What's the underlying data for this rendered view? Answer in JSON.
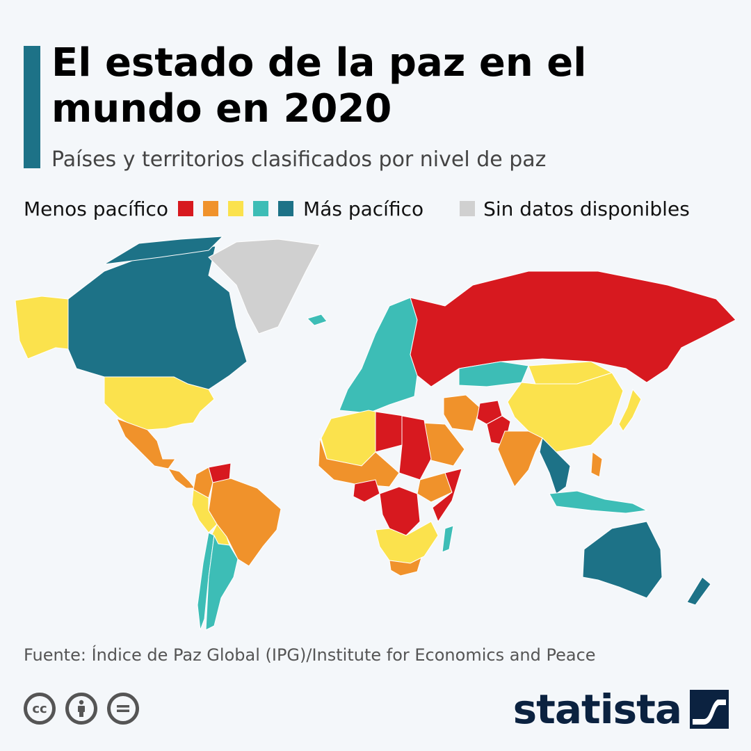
{
  "header": {
    "title": "El estado de la paz en el mundo en 2020",
    "subtitle": "Países y territorios clasificados por nivel de paz"
  },
  "legend": {
    "less_label": "Menos pacífico",
    "more_label": "Más pacífico",
    "nodata_label": "Sin datos disponibles",
    "scale_colors": [
      "#d7191f",
      "#f0922b",
      "#fbe24d",
      "#3dbdb6",
      "#1d7287"
    ],
    "nodata_color": "#d0d0d0"
  },
  "map": {
    "regions": [
      {
        "name": "Alaska",
        "level": 3
      },
      {
        "name": "Canadá",
        "level": 5
      },
      {
        "name": "Estados Unidos",
        "level": 3
      },
      {
        "name": "México",
        "level": 2
      },
      {
        "name": "Centroamérica",
        "level": 2
      },
      {
        "name": "Colombia",
        "level": 2
      },
      {
        "name": "Venezuela",
        "level": 1
      },
      {
        "name": "Brasil",
        "level": 2
      },
      {
        "name": "Perú",
        "level": 3
      },
      {
        "name": "Bolivia",
        "level": 3
      },
      {
        "name": "Chile",
        "level": 4
      },
      {
        "name": "Argentina",
        "level": 4
      },
      {
        "name": "Groenlandia",
        "level": 0
      },
      {
        "name": "Islandia",
        "level": 4
      },
      {
        "name": "Europa",
        "level": 4
      },
      {
        "name": "Rusia",
        "level": 1
      },
      {
        "name": "Kazajistán",
        "level": 4
      },
      {
        "name": "China",
        "level": 3
      },
      {
        "name": "Mongolia",
        "level": 3
      },
      {
        "name": "India",
        "level": 2
      },
      {
        "name": "Pakistán",
        "level": 1
      },
      {
        "name": "Afganistán",
        "level": 1
      },
      {
        "name": "Irán",
        "level": 2
      },
      {
        "name": "Arabia Saudita",
        "level": 2
      },
      {
        "name": "Japón",
        "level": 5
      },
      {
        "name": "Sudeste Asiático",
        "level": 3
      },
      {
        "name": "Indonesia",
        "level": 4
      },
      {
        "name": "Filipinas",
        "level": 2
      },
      {
        "name": "Australia",
        "level": 5
      },
      {
        "name": "Nueva Zelanda",
        "level": 5
      },
      {
        "name": "Norte de África",
        "level": 3
      },
      {
        "name": "Libia",
        "level": 1
      },
      {
        "name": "Sudán",
        "level": 1
      },
      {
        "name": "RD Congo",
        "level": 1
      },
      {
        "name": "Nigeria",
        "level": 1
      },
      {
        "name": "Sahel",
        "level": 2
      },
      {
        "name": "Somalia",
        "level": 1
      },
      {
        "name": "Etiopía",
        "level": 2
      },
      {
        "name": "África Austral",
        "level": 3
      },
      {
        "name": "Sudáfrica",
        "level": 2
      },
      {
        "name": "Madagascar",
        "level": 4
      }
    ]
  },
  "footer": {
    "source": "Fuente: Índice de Paz Global (IPG)/Institute for Economics and Peace",
    "brand": "statista",
    "license_icons": [
      "cc-icon",
      "attribution-icon",
      "no-derivatives-icon"
    ]
  }
}
